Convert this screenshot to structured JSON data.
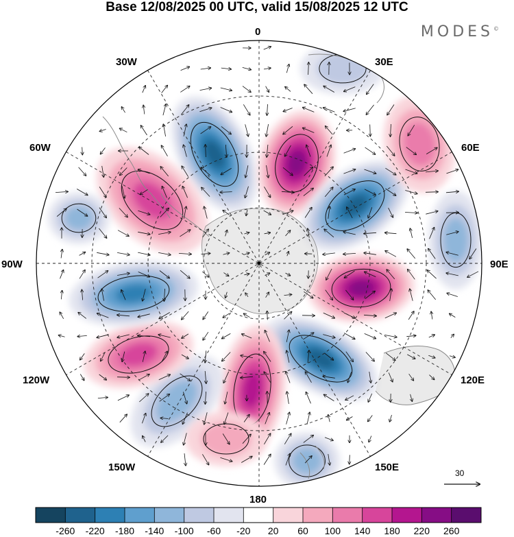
{
  "title": "Base 12/08/2025 00 UTC, valid 15/08/2025 12 UTC",
  "logo": "MODES",
  "logo_mark": "©",
  "longitude_labels": {
    "lon_0": "0",
    "lon_30e": "30E",
    "lon_60e": "60E",
    "lon_90e": "90E",
    "lon_120e": "120E",
    "lon_150e": "150E",
    "lon_180": "180",
    "lon_150w": "150W",
    "lon_120w": "120W",
    "lon_90w": "90W",
    "lon_60w": "60W",
    "lon_30w": "30W"
  },
  "reference_vector": "30",
  "colorbar": {
    "labels": [
      "-260",
      "-220",
      "-180",
      "-140",
      "-100",
      "-60",
      "-20",
      "20",
      "60",
      "100",
      "140",
      "180",
      "220",
      "260"
    ],
    "colors": [
      "#15445f",
      "#1f628d",
      "#2d80b4",
      "#5f9fce",
      "#8fb6da",
      "#bfc9e2",
      "#e2e4ef",
      "#ffffff",
      "#f9d5db",
      "#f4a9bd",
      "#ea7bab",
      "#d7459b",
      "#b4168f",
      "#860d85",
      "#5a0d6e"
    ]
  },
  "anomalies": [
    {
      "id": "neg-north-left",
      "value": -240
    },
    {
      "id": "pos-north-right",
      "value": 230
    },
    {
      "id": "neg-east-upper",
      "value": -220
    },
    {
      "id": "pos-east",
      "value": 240
    },
    {
      "id": "neg-southeast",
      "value": -240
    },
    {
      "id": "pos-south",
      "value": 200
    },
    {
      "id": "neg-southwest",
      "value": -120
    },
    {
      "id": "pos-west-lower",
      "value": 170
    },
    {
      "id": "neg-west",
      "value": -200
    },
    {
      "id": "pos-west-upper",
      "value": 170
    },
    {
      "id": "neg-far-west",
      "value": -100
    },
    {
      "id": "pos-northeast",
      "value": 110
    },
    {
      "id": "neg-far-east",
      "value": -110
    },
    {
      "id": "neg-bottom-right",
      "value": -130
    },
    {
      "id": "neg-top-right",
      "value": -60
    },
    {
      "id": "pos-bottom-left",
      "value": 80
    }
  ]
}
